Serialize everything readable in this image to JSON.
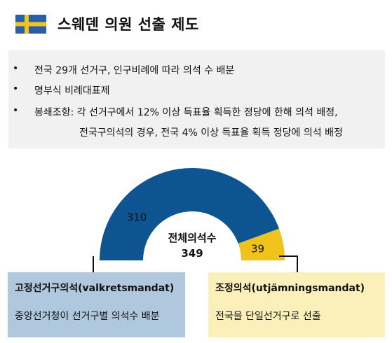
{
  "header": {
    "title": "스웨덴 의원 선출 제도",
    "flag_colors": {
      "blue": "#2a5ea8",
      "yellow": "#f5c41a"
    }
  },
  "info": {
    "items": [
      "전국 29개 선거구, 인구비례에 따라 의석 수 배분",
      "명부식 비례대표제",
      "봉쇄조항: 각 선거구에서 12% 이상 득표율 획득한 정당에 한해 의석 배정,"
    ],
    "continuation": "전국구의석의 경우, 전국 4% 이상 득표율 획득 정당에 의석 배정"
  },
  "chart_data": {
    "type": "pie",
    "subtype": "half-donut",
    "slices": [
      {
        "value": 310,
        "color": "#0d5490"
      },
      {
        "value": 39,
        "color": "#f0c31c"
      }
    ],
    "center_label": "전체의석수",
    "center_value": "349"
  },
  "boxes": [
    {
      "title": "고정선거구의석(valkretsmandat)",
      "desc": "중앙선거청이 선거구별 의석수 배분",
      "color": "#b0c8dd"
    },
    {
      "title": "조정의석(utjämningsmandat)",
      "desc": "전국을 단일선거구로 선출",
      "color": "#fbf0b9"
    }
  ]
}
